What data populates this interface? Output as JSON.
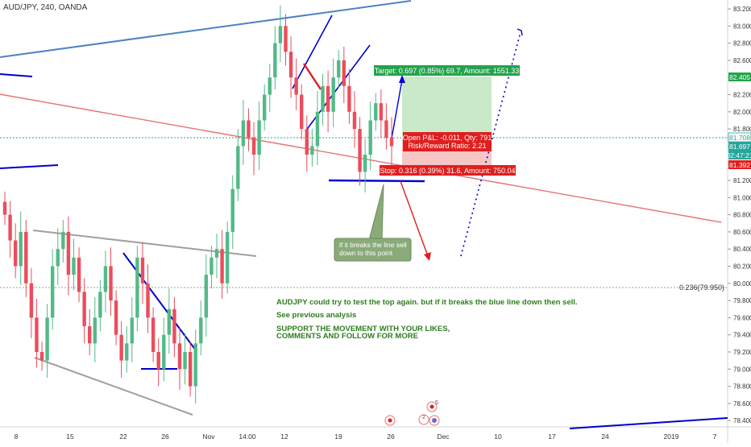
{
  "header": {
    "symbol_title": "AUD/JPY, 240, OANDA"
  },
  "price_axis": {
    "ticks": [
      "83.200",
      "83.000",
      "82.800",
      "82.600",
      "82.400",
      "82.200",
      "82.000",
      "81.800",
      "81.600",
      "81.400",
      "81.200",
      "81.000",
      "80.800",
      "80.600",
      "80.400",
      "80.200",
      "80.000",
      "79.800",
      "79.600",
      "79.400",
      "79.200",
      "79.000",
      "78.800",
      "78.600",
      "78.400"
    ],
    "badges": {
      "target": "82.405",
      "current": "81.708",
      "open": "81.697",
      "timer": "02:47:21",
      "stop": "81.392"
    }
  },
  "time_axis": {
    "ticks": [
      "8",
      "15",
      "22",
      "26",
      "Nov",
      "14:00",
      "12",
      "19",
      "26",
      "Dec",
      "10",
      "17",
      "24",
      "2019",
      "7"
    ]
  },
  "fib": {
    "label": "0.236(79.950)"
  },
  "position": {
    "target_label": "Target: 0.697 (0.85%) 69.7, Amount: 1551.33",
    "pnl_line1": "Open P&L: -0.011, Qty: 791",
    "pnl_line2": "Risk/Reward Ratio: 2.21",
    "stop_label": "Stop: 0.316 (0.39%) 31.6, Amount: 750.04"
  },
  "callout": {
    "line1": "if it breaks the line sell",
    "line2": "down to this point"
  },
  "notes": {
    "line1": "AUDJPY could try to test the top again. but if it breaks the blue line down then sell.",
    "line2": "See previous analysis",
    "line3": "SUPPORT THE MOVEMENT WITH YOUR LIKES,",
    "line4": "COMMENTS AND FOLLOW FOR MORE"
  },
  "events": {
    "badge_5": "5",
    "badge_2": "2"
  },
  "colors": {
    "up": "#53b987",
    "down": "#eb4d5c",
    "blue_line": "#0000cc",
    "steel_line": "#4a84c4",
    "red_trend": "#e57373",
    "grey_line": "#a0a0a0",
    "target_green": "#23a34b",
    "stop_red": "#e01e1e",
    "note_green": "#2e7d1e",
    "callout_bg": "#8aaa7a"
  },
  "chart_data": {
    "type": "candlestick",
    "title": "AUD/JPY, 240, OANDA",
    "ylim": [
      78.38,
      83.26
    ],
    "candles_approx_close": [
      80.8,
      80.5,
      80.2,
      80.6,
      80.0,
      79.6,
      79.2,
      79.1,
      79.6,
      80.2,
      80.4,
      80.6,
      80.1,
      80.3,
      79.9,
      79.5,
      79.3,
      79.6,
      79.9,
      80.2,
      79.8,
      79.4,
      79.1,
      79.3,
      79.6,
      80.3,
      80.0,
      79.6,
      79.2,
      79.0,
      79.4,
      79.7,
      79.3,
      79.0,
      79.2,
      78.8,
      79.3,
      79.6,
      80.1,
      80.3,
      80.4,
      80.0,
      80.6,
      81.1,
      81.6,
      81.9,
      81.7,
      81.5,
      81.9,
      82.2,
      82.4,
      82.8,
      83.0,
      82.7,
      82.4,
      82.2,
      81.8,
      81.5,
      81.6,
      82.0,
      82.3,
      82.0,
      82.4,
      82.6,
      82.3,
      82.0,
      81.8,
      81.3,
      81.5,
      81.9,
      82.1,
      81.9,
      81.7,
      81.6
    ],
    "levels": {
      "target": 82.405,
      "current": 81.708,
      "open": 81.697,
      "stop": 81.392,
      "fib_0_236": 79.95
    }
  }
}
